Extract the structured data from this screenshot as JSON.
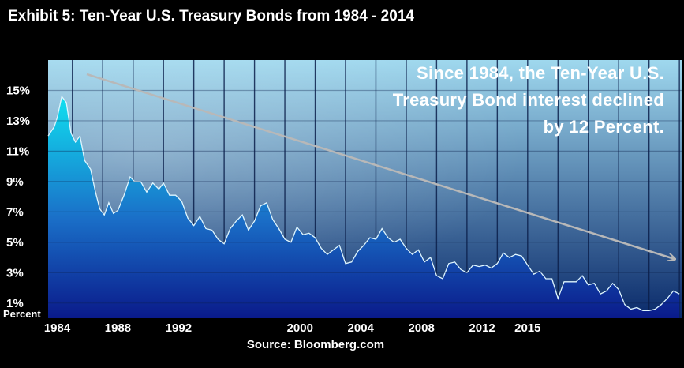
{
  "title": "Exhibit 5: Ten-Year U.S. Treasury Bonds from 1984 - 2014",
  "source": "Source: Bloomberg.com",
  "annotation": [
    "Since 1984, the Ten-Year U.S.",
    "Treasury Bond interest declined",
    "by 12 Percent."
  ],
  "colors": {
    "background": "#000000",
    "plot_top": "#9fd8ee",
    "plot_bottom": "#0a2a6a",
    "area_top": "#10e0f0",
    "area_bottom": "#0a1a8a",
    "arrow": "#b8b8b8",
    "text": "#ffffff"
  },
  "chart_data": {
    "type": "area",
    "title": "Exhibit 5: Ten-Year U.S. Treasury Bonds from 1984 - 2014",
    "ylabel": "Percent",
    "xlabel": "",
    "ylim": [
      0,
      17
    ],
    "xlim": [
      1983.4,
      2025.2
    ],
    "grid": true,
    "y_ticks": [
      1,
      3,
      5,
      7,
      9,
      11,
      13,
      15
    ],
    "y_tick_labels": [
      "1%",
      "3%",
      "5%",
      "7%",
      "9%",
      "11%",
      "13%",
      "15%"
    ],
    "x_ticks": [
      1984,
      1988,
      1992,
      2000,
      2004,
      2008,
      2012,
      2015
    ],
    "x_tick_labels": [
      "1984",
      "1988",
      "1992",
      "2000",
      "2004",
      "2008",
      "2012",
      "2015"
    ],
    "series": [
      {
        "x": [
          1983.4,
          1983.8,
          1984.0,
          1984.3,
          1984.6,
          1984.9,
          1985.2,
          1985.5,
          1985.8,
          1986.2,
          1986.5,
          1986.8,
          1987.1,
          1987.4,
          1987.7,
          1988.0,
          1988.4,
          1988.8,
          1989.1,
          1989.5,
          1989.9,
          1990.3,
          1990.7,
          1991.0,
          1991.4,
          1991.8,
          1992.2,
          1992.6,
          1993.0,
          1993.4,
          1993.8,
          1994.2,
          1994.6,
          1995.0,
          1995.4,
          1995.8,
          1996.2,
          1996.6,
          1997.0,
          1997.4,
          1997.8,
          1998.2,
          1998.6,
          1999.0,
          1999.4,
          1999.8,
          2000.2,
          2000.6,
          2001.0,
          2001.4,
          2001.8,
          2002.2,
          2002.6,
          2003.0,
          2003.4,
          2003.8,
          2004.2,
          2004.6,
          2005.0,
          2005.4,
          2005.8,
          2006.2,
          2006.6,
          2007.0,
          2007.4,
          2007.8,
          2008.2,
          2008.6,
          2009.0,
          2009.4,
          2009.8,
          2010.2,
          2010.6,
          2011.0,
          2011.4,
          2011.8,
          2012.2,
          2012.6,
          2013.0,
          2013.4,
          2013.8,
          2014.2,
          2014.6,
          2015.0,
          2015.4,
          2015.8,
          2016.2,
          2016.6,
          2017.0,
          2017.4,
          2017.8,
          2018.2,
          2018.6,
          2019.0,
          2019.4,
          2019.8,
          2020.2,
          2020.6,
          2021.0,
          2021.4,
          2021.8,
          2022.2,
          2022.6,
          2023.0,
          2023.4,
          2023.8,
          2024.2,
          2024.6,
          2025.0
        ],
        "values": [
          12.0,
          12.6,
          13.2,
          14.6,
          14.2,
          12.2,
          11.6,
          12.0,
          10.4,
          9.8,
          8.4,
          7.2,
          6.8,
          7.6,
          6.9,
          7.1,
          8.1,
          9.3,
          9.0,
          9.0,
          8.3,
          8.9,
          8.5,
          8.9,
          8.1,
          8.1,
          7.7,
          6.6,
          6.1,
          6.7,
          5.9,
          5.8,
          5.2,
          4.9,
          5.9,
          6.4,
          6.8,
          5.8,
          6.4,
          7.4,
          7.6,
          6.5,
          5.9,
          5.2,
          5.0,
          6.0,
          5.5,
          5.6,
          5.3,
          4.6,
          4.2,
          4.5,
          4.8,
          3.6,
          3.7,
          4.4,
          4.8,
          5.3,
          5.2,
          5.9,
          5.3,
          5.0,
          5.2,
          4.6,
          4.2,
          4.5,
          3.7,
          4.0,
          2.8,
          2.6,
          3.6,
          3.7,
          3.2,
          3.0,
          3.5,
          3.4,
          3.5,
          3.3,
          3.6,
          4.3,
          4.0,
          4.2,
          4.1,
          3.5,
          2.9,
          3.1,
          2.6,
          2.6,
          1.3,
          2.4,
          2.4,
          2.4,
          2.8,
          2.2,
          2.3,
          1.6,
          1.8,
          2.3,
          1.9,
          0.9,
          0.6,
          0.7,
          0.5,
          0.5,
          0.6,
          0.9,
          1.3,
          1.8,
          1.6
        ]
      }
    ]
  }
}
